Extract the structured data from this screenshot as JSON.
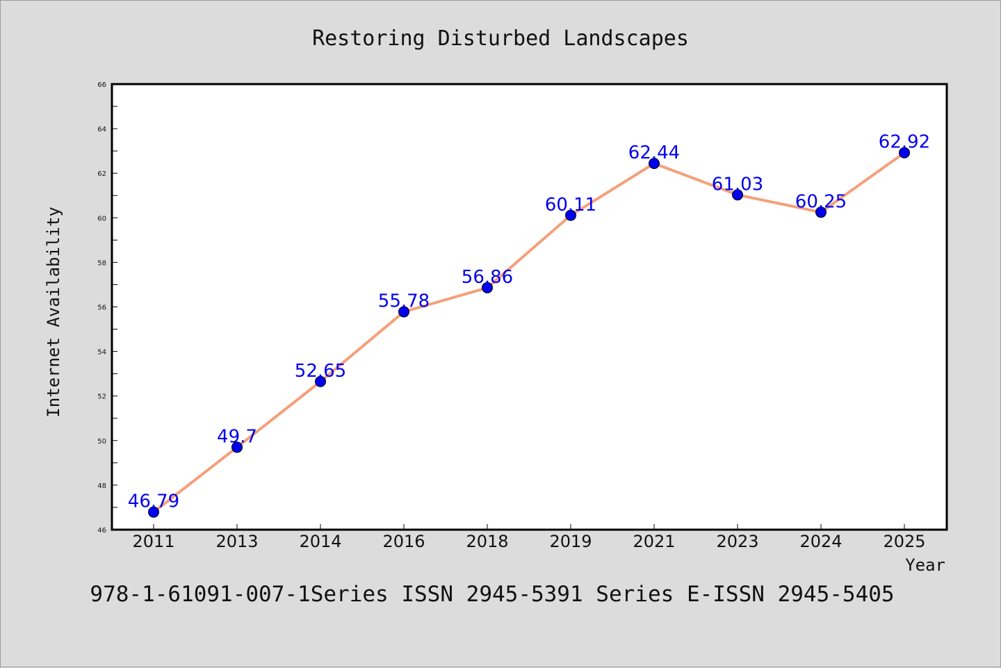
{
  "chart_data": {
    "type": "line",
    "title": "Restoring Disturbed Landscapes",
    "xlabel": "Year",
    "ylabel": "Internet Availability",
    "categories": [
      "2011",
      "2013",
      "2014",
      "2016",
      "2018",
      "2019",
      "2021",
      "2023",
      "2024",
      "2025"
    ],
    "series": [
      {
        "values": [
          46.79,
          49.7,
          52.65,
          55.78,
          56.86,
          60.11,
          62.44,
          61.03,
          60.25,
          62.92
        ],
        "data_labels": [
          "46.79",
          "49.7",
          "52.65",
          "55.78",
          "56.86",
          "60.11",
          "62.44",
          "61.03",
          "60.25",
          "62.92"
        ],
        "line_color": "#f4a07a",
        "marker_color": "#0000ee"
      }
    ],
    "ylim": [
      46,
      66
    ],
    "yticks": [
      46,
      48,
      50,
      52,
      54,
      56,
      58,
      60,
      62,
      64,
      66
    ],
    "grid": false,
    "legend": "none",
    "footer": "978-1-61091-007-1Series ISSN 2945-5391 Series E-ISSN 2945-5405"
  }
}
